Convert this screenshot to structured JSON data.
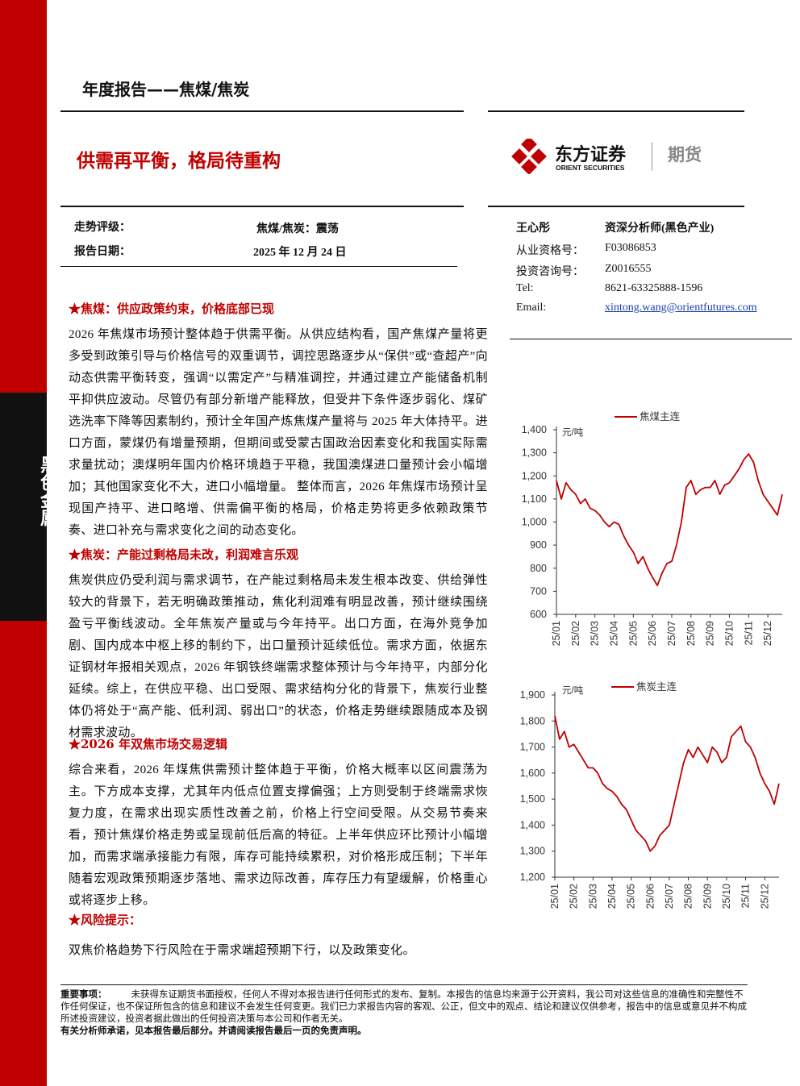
{
  "header": {
    "report_type": "年度报告——焦煤/焦炭",
    "title": "供需再平衡，格局待重构"
  },
  "logo": {
    "name_cn": "东方证券",
    "name_en": "ORIENT SECURITIES",
    "unit": "期货"
  },
  "sidebar": {
    "label": "黑色金属"
  },
  "rating": {
    "rows": [
      [
        "走势评级：",
        "焦煤/焦炭：震荡"
      ],
      [
        "报告日期：",
        "2025 年 12 月 24 日"
      ]
    ]
  },
  "analyst": {
    "name": "王心彤",
    "role": "资深分析师(黑色产业)",
    "rows": [
      [
        "从业资格号：",
        "F03086853"
      ],
      [
        "投资咨询号：",
        "Z0016555"
      ],
      [
        "Tel:",
        "8621-63325888-1596"
      ],
      [
        "Email:",
        "xintong.wang@orientfutures.com"
      ]
    ]
  },
  "sections": [
    {
      "heading": "★焦煤：供应政策约束，价格底部已现",
      "body": "2026 年焦煤市场预计整体趋于供需平衡。从供应结构看，国产焦煤产量将更多受到政策引导与价格信号的双重调节，调控思路逐步从“保供”或“查超产”向动态供需平衡转变，强调“以需定产”与精准调控，并通过建立产能储备机制平抑供应波动。尽管仍有部分新增产能释放，但受井下条件逐步弱化、煤矿选洗率下降等因素制约，预计全年国产炼焦煤产量将与 2025 年大体持平。进口方面，蒙煤仍有增量预期，但期间或受蒙古国政治因素变化和我国实际需求量扰动；澳煤明年国内价格环境趋于平稳，我国澳煤进口量预计会小幅增加；其他国家变化不大，进口小幅增量。 整体而言，2026 年焦煤市场预计呈现国产持平、进口略增、供需偏平衡的格局，价格走势将更多依赖政策节奏、进口补充与需求变化之间的动态变化。"
    },
    {
      "heading": "★焦炭：产能过剩格局未改，利润难言乐观",
      "body": "焦炭供应仍受利润与需求调节，在产能过剩格局未发生根本改变、供给弹性较大的背景下，若无明确政策推动，焦化利润难有明显改善，预计继续围绕盈亏平衡线波动。全年焦炭产量或与今年持平。出口方面，在海外竞争加剧、国内成本中枢上移的制约下，出口量预计延续低位。需求方面，依据东证钢材年报相关观点，2026 年钢铁终端需求整体预计与今年持平，内部分化延续。综上，在供应平稳、出口受限、需求结构分化的背景下，焦炭行业整体仍将处于“高产能、低利润、弱出口”的状态，价格走势继续跟随成本及钢材需求波动。"
    },
    {
      "heading": "★2026 年双焦市场交易逻辑",
      "body": "综合来看，2026 年煤焦供需预计整体趋于平衡，价格大概率以区间震荡为主。下方成本支撑，尤其年内低点位置支撑偏强；上方则受制于终端需求恢复力度，在需求出现实质性改善之前，价格上行空间受限。从交易节奏来看，预计焦煤价格走势或呈现前低后高的特征。上半年供应环比预计小幅增加，而需求端承接能力有限，库存可能持续累积，对价格形成压制；下半年随着宏观政策预期逐步落地、需求边际改善，库存压力有望缓解，价格重心或将逐步上移。"
    },
    {
      "heading": "★风险提示：",
      "body": "双焦价格趋势下行风险在于需求端超预期下行，以及政策变化。"
    }
  ],
  "chart_data": [
    {
      "type": "line",
      "unit": "元/吨",
      "categories": [
        "25/01",
        null,
        null,
        null,
        "25/02",
        null,
        null,
        null,
        "25/03",
        null,
        null,
        null,
        "25/04",
        null,
        null,
        null,
        "25/05",
        null,
        null,
        null,
        "25/06",
        null,
        null,
        null,
        "25/07",
        null,
        null,
        null,
        "25/08",
        null,
        null,
        null,
        "25/09",
        null,
        null,
        null,
        "25/10",
        null,
        null,
        null,
        "25/11",
        null,
        null,
        null,
        "25/12",
        null,
        null,
        null
      ],
      "series": [
        {
          "name": "焦煤主连",
          "color": "#c00000",
          "values": [
            1180,
            1100,
            1170,
            1140,
            1120,
            1080,
            1100,
            1060,
            1050,
            1030,
            1000,
            980,
            1000,
            990,
            940,
            900,
            870,
            820,
            850,
            800,
            760,
            725,
            780,
            820,
            830,
            900,
            1000,
            1150,
            1180,
            1120,
            1140,
            1150,
            1150,
            1180,
            1120,
            1160,
            1170,
            1200,
            1230,
            1270,
            1295,
            1260,
            1180,
            1120,
            1090,
            1060,
            1030,
            1120
          ]
        }
      ],
      "ylim": [
        600,
        1400
      ],
      "yticks": [
        600,
        700,
        800,
        900,
        {
          "value": 1000,
          "label": "1,000"
        },
        {
          "value": 1100,
          "label": "1,100"
        },
        {
          "value": 1200,
          "label": "1,200"
        },
        {
          "value": 1300,
          "label": "1,300"
        },
        {
          "value": 1400,
          "label": "1,400"
        }
      ]
    },
    {
      "type": "line",
      "unit": "元/吨",
      "categories": [
        "25/01",
        null,
        null,
        null,
        "25/02",
        null,
        null,
        null,
        "25/03",
        null,
        null,
        null,
        "25/04",
        null,
        null,
        null,
        "25/05",
        null,
        null,
        null,
        "25/06",
        null,
        null,
        null,
        "25/07",
        null,
        null,
        null,
        "25/08",
        null,
        null,
        null,
        "25/09",
        null,
        null,
        null,
        "25/10",
        null,
        null,
        null,
        "25/11",
        null,
        null,
        null,
        "25/12",
        null,
        null,
        null
      ],
      "series": [
        {
          "name": "焦炭主连",
          "color": "#c00000",
          "values": [
            1820,
            1730,
            1760,
            1700,
            1710,
            1680,
            1650,
            1620,
            1620,
            1600,
            1560,
            1540,
            1530,
            1510,
            1480,
            1460,
            1420,
            1380,
            1360,
            1340,
            1300,
            1320,
            1360,
            1380,
            1400,
            1480,
            1560,
            1640,
            1690,
            1660,
            1700,
            1670,
            1640,
            1700,
            1680,
            1640,
            1660,
            1740,
            1760,
            1780,
            1720,
            1700,
            1660,
            1600,
            1560,
            1530,
            1480,
            1560
          ]
        }
      ],
      "ylim": [
        1200,
        1900
      ],
      "yticks": [
        {
          "value": 1200,
          "label": "1,200"
        },
        {
          "value": 1300,
          "label": "1,300"
        },
        {
          "value": 1400,
          "label": "1,400"
        },
        {
          "value": 1500,
          "label": "1,500"
        },
        {
          "value": 1600,
          "label": "1,600"
        },
        {
          "value": 1700,
          "label": "1,700"
        },
        {
          "value": 1800,
          "label": "1,800"
        },
        {
          "value": 1900,
          "label": "1,900"
        }
      ]
    }
  ],
  "disclaimer": {
    "label": "重要事项：",
    "text": "未获得东证期货书面授权，任何人不得对本报告进行任何形式的发布、复制。本报告的信息均来源于公开资料，我公司对这些信息的准确性和完整性不作任何保证，也不保证所包含的信息和建议不会发生任何变更。我们已力求报告内容的客观、公正，但文中的观点、结论和建议仅供参考，报告中的信息或意见并不构成所述投资建议，投资者据此做出的任何投资决策与本公司和作者无关。",
    "note": "有关分析师承诺，见本报告最后部分。并请阅读报告最后一页的免责声明。"
  }
}
